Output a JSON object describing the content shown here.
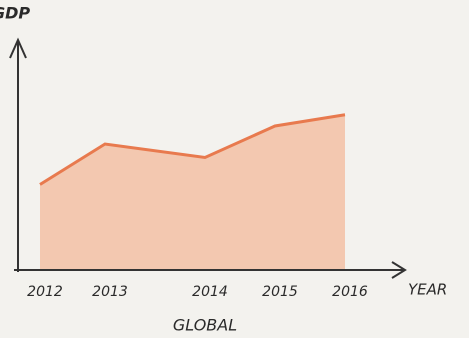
{
  "chart_data": {
    "type": "area",
    "y_label": "GDP",
    "x_label": "YEAR",
    "subtitle": "GLOBAL",
    "categories": [
      "2012",
      "2013",
      "2014",
      "2015",
      "2016"
    ],
    "values": [
      3.8,
      5.6,
      5.0,
      6.4,
      6.9
    ],
    "color": "#f2a57e",
    "line_color": "#e87a4e",
    "ylim": [
      0,
      10
    ]
  }
}
